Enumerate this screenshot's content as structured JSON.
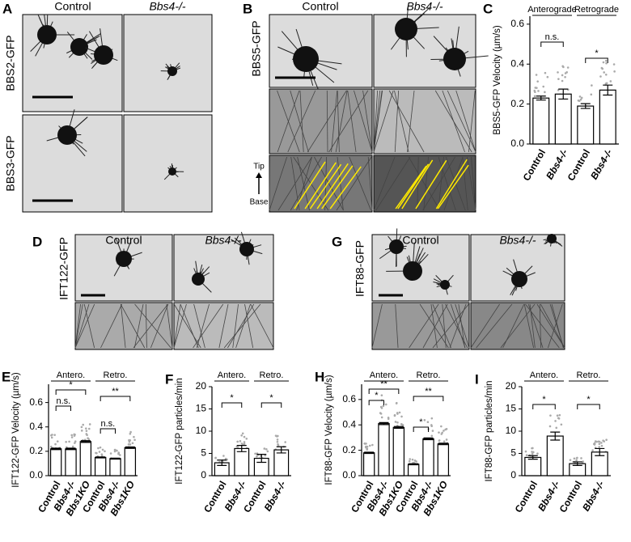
{
  "image_panels": [
    {
      "panel": "A",
      "columns": [
        "Control",
        "Bbs4-/-"
      ],
      "rows": [
        "BBS2-GFP",
        "BBS3-GFP"
      ]
    },
    {
      "panel": "B",
      "columns": [
        "Control",
        "Bbs4-/-"
      ],
      "rows": [
        "BBS5-GFP"
      ],
      "kymograph_axis": [
        "Tip",
        "Base"
      ]
    },
    {
      "panel": "D",
      "columns": [
        "Control",
        "Bbs4-/-"
      ],
      "rows": [
        "IFT122-GFP"
      ]
    },
    {
      "panel": "G",
      "columns": [
        "Control",
        "Bbs4-/-"
      ],
      "rows": [
        "IFT88-GFP"
      ]
    }
  ],
  "chart_data": [
    {
      "type": "bar",
      "panel": "C",
      "ylabel": "BBS5-GFP Velocity (µm/s)",
      "categories": [
        "Control",
        "Bbs4-/-",
        "Control",
        "Bbs4-/-"
      ],
      "values": [
        0.23,
        0.25,
        0.19,
        0.27
      ],
      "errors": [
        0.01,
        0.025,
        0.012,
        0.025
      ],
      "groups": [
        "Anterograde",
        "Retrograde"
      ],
      "significance": [
        "n.s.",
        "*"
      ],
      "ylim": [
        0,
        0.64
      ],
      "yticks": [
        {
          "value": 0,
          "label": "0.0"
        },
        0.2,
        0.4,
        0.6
      ],
      "color": "#ffffff"
    },
    {
      "type": "bar",
      "panel": "E",
      "ylabel": "IFT122-GFP Velocity (µm/s)",
      "categories": [
        "Control",
        "Bbs4-/-",
        "Bbs1KO",
        "Control",
        "Bbs4-/-",
        "Bbs1KO"
      ],
      "values": [
        0.22,
        0.22,
        0.28,
        0.15,
        0.14,
        0.23
      ],
      "errors": [
        0.006,
        0.006,
        0.007,
        0.004,
        0.004,
        0.006
      ],
      "groups": [
        "Antero.",
        "Retro."
      ],
      "significance": [
        "n.s.",
        "*",
        "n.s.",
        "**"
      ],
      "ylim": [
        0,
        0.75
      ],
      "yticks": [
        {
          "value": 0,
          "label": "0.0"
        },
        0.2,
        0.4,
        0.6
      ],
      "color": "#ffffff"
    },
    {
      "type": "bar",
      "panel": "F",
      "ylabel": "IFT122-GFP particles/min",
      "categories": [
        "Control",
        "Bbs4-/-",
        "Control",
        "Bbs4-/-"
      ],
      "values": [
        2.9,
        6.1,
        3.9,
        5.8
      ],
      "errors": [
        0.6,
        0.7,
        0.9,
        0.7
      ],
      "groups": [
        "Antero.",
        "Retro."
      ],
      "significance": [
        "*",
        "*"
      ],
      "ylim": [
        0,
        20
      ],
      "yticks": [
        0,
        5,
        10,
        15,
        20
      ],
      "color": "#ffffff"
    },
    {
      "type": "bar",
      "panel": "H",
      "ylabel": "IFT88-GFP Velocity (µm/s)",
      "categories": [
        "Control",
        "Bbs4-/-",
        "Bbs1KO",
        "Control",
        "Bbs4-/-",
        "Bbs1KO"
      ],
      "values": [
        0.18,
        0.41,
        0.38,
        0.09,
        0.29,
        0.25
      ],
      "errors": [
        0.005,
        0.008,
        0.007,
        0.004,
        0.007,
        0.006
      ],
      "groups": [
        "Antero.",
        "Retro."
      ],
      "significance": [
        "*",
        "**",
        "*",
        "**"
      ],
      "ylim": [
        0,
        0.72
      ],
      "yticks": [
        {
          "value": 0,
          "label": "0.0"
        },
        0.2,
        0.4,
        0.6
      ],
      "color": "#ffffff"
    },
    {
      "type": "bar",
      "panel": "I",
      "ylabel": "IFT88-GFP particles/min",
      "categories": [
        "Control",
        "Bbs4-/-",
        "Control",
        "Bbs4-/-"
      ],
      "values": [
        4.1,
        8.9,
        2.7,
        5.3
      ],
      "errors": [
        0.4,
        0.9,
        0.4,
        0.8
      ],
      "groups": [
        "Antero.",
        "Retro."
      ],
      "significance": [
        "*",
        "*"
      ],
      "ylim": [
        0,
        20
      ],
      "yticks": [
        0,
        5,
        10,
        15,
        20
      ],
      "color": "#ffffff"
    }
  ]
}
